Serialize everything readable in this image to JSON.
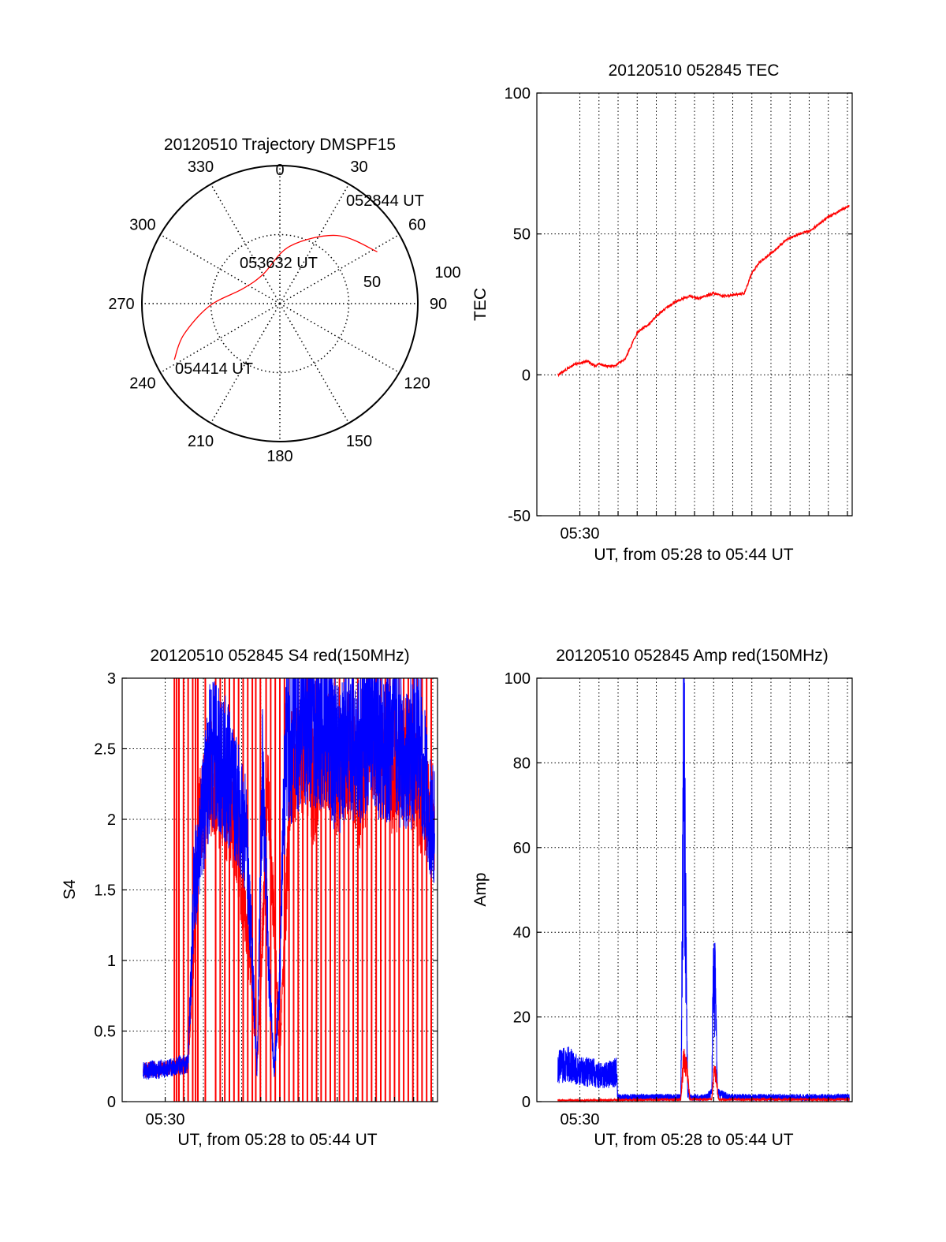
{
  "chart_data": [
    {
      "type": "polar",
      "title": "20120510 Trajectory DMSPF15",
      "azimuth_labels": [
        "0",
        "30",
        "60",
        "90",
        "120",
        "150",
        "180",
        "210",
        "240",
        "270",
        "300",
        "330"
      ],
      "radius_labels": [
        "50",
        "100"
      ],
      "trajectory": {
        "color": "#ff0000",
        "points": [
          {
            "azimuth": 62,
            "elevation": 18
          },
          {
            "azimuth": 40,
            "elevation": 32
          },
          {
            "azimuth": 10,
            "elevation": 52
          },
          {
            "azimuth": 330,
            "elevation": 68
          },
          {
            "azimuth": 292,
            "elevation": 64
          },
          {
            "azimuth": 268,
            "elevation": 44
          },
          {
            "azimuth": 252,
            "elevation": 24
          },
          {
            "azimuth": 242,
            "elevation": 12
          }
        ]
      },
      "annotations": [
        {
          "text": "052844 UT",
          "azimuth": 62,
          "elevation": 18
        },
        {
          "text": "053632 UT",
          "azimuth": 5,
          "elevation": 72
        },
        {
          "text": "054414 UT",
          "azimuth": 242,
          "elevation": 12
        }
      ]
    },
    {
      "type": "line",
      "title": "20120510 052845 TEC",
      "xlabel": "UT, from 05:28 to 05:44 UT",
      "ylabel": "TEC",
      "xlim": [
        5.4625,
        5.7375
      ],
      "ylim": [
        -50,
        100
      ],
      "yticks": [
        -50,
        0,
        50,
        100
      ],
      "xticks": [
        {
          "value": 5.5,
          "label": "05:30"
        }
      ],
      "grid": true,
      "series": [
        {
          "color": "#ff0000",
          "x": [
            5.4808,
            5.4967,
            5.5,
            5.5067,
            5.5133,
            5.5167,
            5.5233,
            5.53,
            5.54,
            5.55,
            5.56,
            5.57,
            5.5833,
            5.5967,
            5.6033,
            5.6167,
            5.6233,
            5.63,
            5.6433,
            5.65,
            5.6567,
            5.6667,
            5.68,
            5.6917,
            5.7,
            5.7167,
            5.735
          ],
          "y": [
            0,
            4,
            4,
            5,
            3,
            4,
            3,
            3,
            6,
            15,
            18,
            22,
            26,
            28,
            27,
            29,
            28,
            28,
            29,
            36,
            40,
            43,
            48,
            50,
            51,
            56,
            60
          ]
        }
      ]
    },
    {
      "type": "line",
      "title": "20120510 052845 S4 red(150MHz)",
      "xlabel": "UT, from 05:28 to 05:44 UT",
      "ylabel": "S4",
      "xlim": [
        5.4625,
        5.7375
      ],
      "ylim": [
        0,
        3
      ],
      "yticks": [
        0,
        0.5,
        1,
        1.5,
        2,
        2.5,
        3
      ],
      "ytick_labels": [
        "0",
        "0.5",
        "1",
        "1.5",
        "2",
        "2.5",
        "3"
      ],
      "xticks": [
        {
          "value": 5.5,
          "label": "05:30"
        }
      ],
      "grid": true,
      "series": [
        {
          "color": "#ff0000",
          "x": [
            5.4808,
            5.495,
            5.505,
            5.515,
            5.52,
            5.53,
            5.54,
            5.56,
            5.575,
            5.58,
            5.59,
            5.6,
            5.61,
            5.62,
            5.63,
            5.64,
            5.65,
            5.66,
            5.67,
            5.68,
            5.69,
            5.7,
            5.71,
            5.72,
            5.735
          ],
          "y": [
            0.22,
            0.23,
            0.24,
            0.26,
            0.26,
            2.0,
            2.3,
            2.0,
            0.9,
            0.2,
            2.2,
            0.3,
            2.4,
            2.5,
            2.2,
            2.6,
            2.3,
            2.5,
            2.2,
            2.6,
            2.4,
            2.3,
            2.5,
            2.2,
            2.0
          ]
        },
        {
          "color": "#0000ff",
          "x": [
            5.4808,
            5.495,
            5.505,
            5.515,
            5.52,
            5.525,
            5.53,
            5.54,
            5.55,
            5.56,
            5.57,
            5.575,
            5.58,
            5.585,
            5.59,
            5.595,
            5.6,
            5.605,
            5.61,
            5.62,
            5.63,
            5.64,
            5.65,
            5.66,
            5.67,
            5.68,
            5.69,
            5.7,
            5.71,
            5.72,
            5.735
          ],
          "y": [
            0.22,
            0.23,
            0.24,
            0.26,
            0.27,
            1.5,
            1.8,
            2.5,
            2.4,
            2.2,
            1.9,
            1.2,
            0.2,
            2.4,
            1.0,
            0.2,
            0.9,
            2.6,
            2.5,
            2.7,
            2.6,
            2.7,
            2.4,
            2.6,
            2.5,
            2.7,
            2.5,
            2.6,
            2.4,
            2.6,
            1.9
          ]
        }
      ],
      "dropout_lines": {
        "color": "#ff0000",
        "x": [
          5.508,
          5.51,
          5.512,
          5.516,
          5.52,
          5.524,
          5.5265,
          5.5285,
          5.535,
          5.544,
          5.548,
          5.552,
          5.556,
          5.56,
          5.564,
          5.568,
          5.572,
          5.576,
          5.579,
          5.583,
          5.588,
          5.592,
          5.596,
          5.6,
          5.604,
          5.608,
          5.612,
          5.616,
          5.62,
          5.624,
          5.628,
          5.632,
          5.636,
          5.64,
          5.644,
          5.648,
          5.652,
          5.656,
          5.66,
          5.664,
          5.668,
          5.672,
          5.676,
          5.68,
          5.684,
          5.688,
          5.692,
          5.696,
          5.7,
          5.704,
          5.708,
          5.712,
          5.716,
          5.72,
          5.724,
          5.728,
          5.732
        ]
      }
    },
    {
      "type": "line",
      "title": "20120510 052845 Amp red(150MHz)",
      "xlabel": "UT, from 05:28 to 05:44 UT",
      "ylabel": "Amp",
      "xlim": [
        5.4625,
        5.7375
      ],
      "ylim": [
        0,
        100
      ],
      "yticks": [
        0,
        20,
        40,
        60,
        80,
        100
      ],
      "xticks": [
        {
          "value": 5.5,
          "label": "05:30"
        }
      ],
      "grid": true,
      "series": [
        {
          "color": "#0000ff",
          "x": [
            5.4808,
            5.49,
            5.5,
            5.51,
            5.52,
            5.532,
            5.533,
            5.54,
            5.56,
            5.58,
            5.588,
            5.59,
            5.5905,
            5.592,
            5.594,
            5.596,
            5.61,
            5.615,
            5.616,
            5.618,
            5.62,
            5.63,
            5.66,
            5.7,
            5.735
          ],
          "y": [
            8,
            9,
            7,
            7,
            6,
            7,
            1,
            1,
            1,
            1,
            1,
            60,
            90,
            50,
            2,
            1,
            1,
            2,
            25,
            26,
            2,
            1,
            1,
            1,
            1
          ]
        },
        {
          "color": "#ff0000",
          "x": [
            5.4808,
            5.5,
            5.53,
            5.54,
            5.588,
            5.5905,
            5.593,
            5.596,
            5.615,
            5.617,
            5.619,
            5.621,
            5.735
          ],
          "y": [
            0.3,
            0.3,
            0.4,
            0.4,
            0.5,
            10,
            8,
            0.5,
            0.5,
            7,
            6,
            0.5,
            0.5
          ]
        }
      ]
    }
  ]
}
